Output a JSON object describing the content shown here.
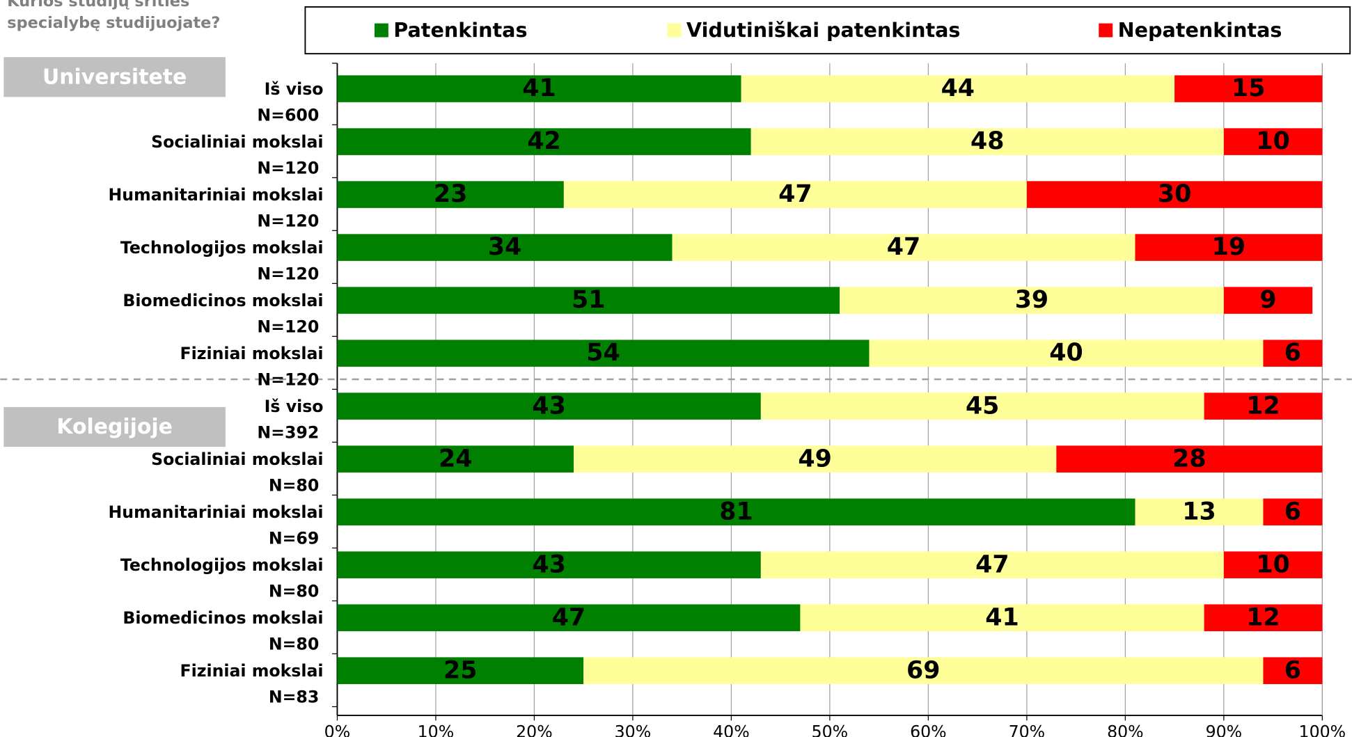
{
  "chart_data": {
    "type": "stacked-bar-horizontal",
    "title_lines": [
      "Kurios studijų srities",
      "specialybę studijuojate?"
    ],
    "groups": [
      {
        "name": "Universitete",
        "rows": [
          0,
          5
        ]
      },
      {
        "name": "Kolegijoje",
        "rows": [
          6,
          11
        ]
      }
    ],
    "categories": [
      "Iš viso",
      "Socialiniai mokslai",
      "Humanitariniai mokslai",
      "Technologijos mokslai",
      "Biomedicinos mokslai",
      "Fiziniai mokslai",
      "Iš viso",
      "Socialiniai mokslai",
      "Humanitariniai mokslai",
      "Technologijos mokslai",
      "Biomedicinos mokslai",
      "Fiziniai mokslai"
    ],
    "n_labels": [
      "N=600",
      "N=120",
      "N=120",
      "N=120",
      "N=120",
      "N=120",
      "N=392",
      "N=80",
      "N=69",
      "N=80",
      "N=80",
      "N=83"
    ],
    "series": [
      {
        "name": "Patenkintas",
        "color": "#008000",
        "values": [
          41,
          42,
          23,
          34,
          51,
          54,
          43,
          24,
          81,
          43,
          47,
          25
        ]
      },
      {
        "name": "Vidutiniškai patenkintas",
        "color": "#ffff99",
        "values": [
          44,
          48,
          47,
          47,
          39,
          40,
          45,
          49,
          13,
          47,
          41,
          69
        ]
      },
      {
        "name": "Nepatenkintas",
        "color": "#ff0000",
        "values": [
          15,
          10,
          30,
          19,
          9,
          6,
          12,
          28,
          6,
          10,
          12,
          6
        ]
      }
    ],
    "xlim": [
      0,
      100
    ],
    "xticks": [
      {
        "value": 0,
        "label": "0%"
      },
      {
        "value": 10,
        "label": "10%"
      },
      {
        "value": 20,
        "label": "20%"
      },
      {
        "value": 30,
        "label": "30%"
      },
      {
        "value": 40,
        "label": "40%"
      },
      {
        "value": 50,
        "label": "50%"
      },
      {
        "value": 60,
        "label": "60%"
      },
      {
        "value": 70,
        "label": "70%"
      },
      {
        "value": 80,
        "label": "80%"
      },
      {
        "value": 90,
        "label": "90%"
      },
      {
        "value": 100,
        "label": "100%"
      }
    ],
    "grid": true,
    "legend": "top"
  }
}
